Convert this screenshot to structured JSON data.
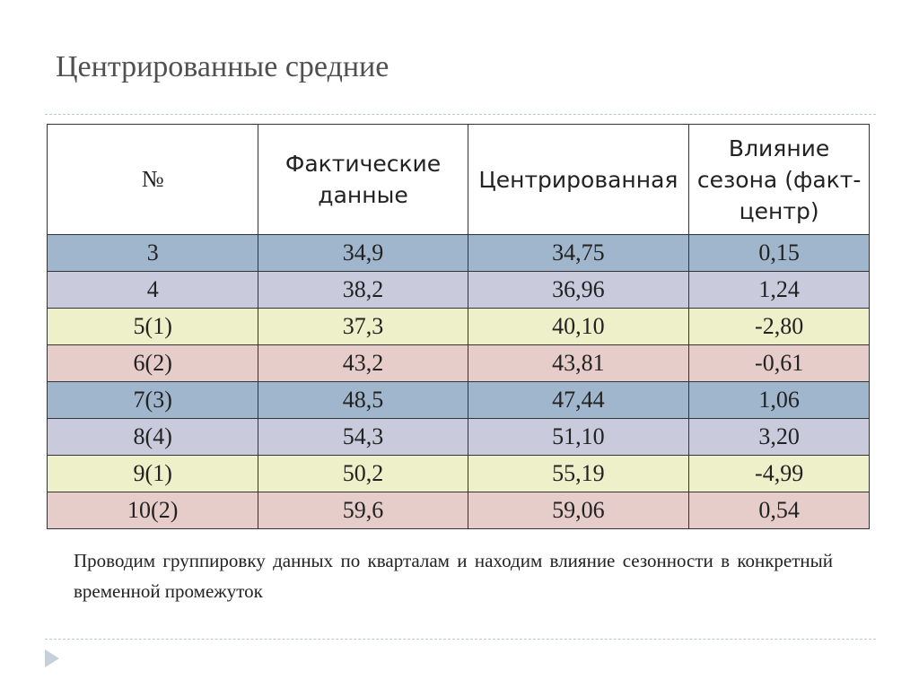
{
  "header": {
    "title": "Центрированные средние"
  },
  "table": {
    "columns": [
      "№",
      "Фактические данные",
      "Центрированная",
      "Влияние сезона (факт-центр)"
    ],
    "rows": [
      [
        "3",
        "34,9",
        "34,75",
        "0,15"
      ],
      [
        "4",
        "38,2",
        "36,96",
        "1,24"
      ],
      [
        "5(1)",
        "37,3",
        "40,10",
        "-2,80"
      ],
      [
        "6(2)",
        "43,2",
        "43,81",
        "-0,61"
      ],
      [
        "7(3)",
        "48,5",
        "47,44",
        "1,06"
      ],
      [
        "8(4)",
        "54,3",
        "51,10",
        "3,20"
      ],
      [
        "9(1)",
        "50,2",
        "55,19",
        "-4,99"
      ],
      [
        "10(2)",
        "59,6",
        "59,06",
        "0,54"
      ]
    ]
  },
  "caption": "Проводим группировку данных по кварталам и находим влияние сезонности в конкретный временной промежуток"
}
